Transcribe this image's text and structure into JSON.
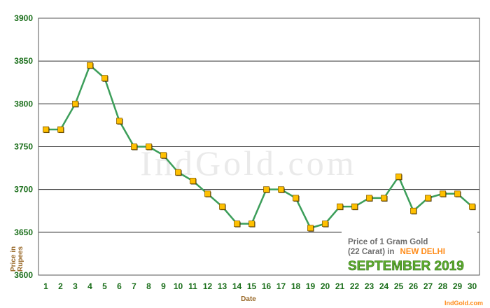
{
  "chart_data": {
    "type": "line",
    "watermark": "IndGold.com",
    "xlabel": "Date",
    "ylabel": "Price in Rupees",
    "ylim": [
      3600,
      3900
    ],
    "yticks": [
      3600,
      3650,
      3700,
      3750,
      3800,
      3850,
      3900
    ],
    "grid": true,
    "x": [
      1,
      2,
      3,
      4,
      5,
      6,
      7,
      8,
      9,
      10,
      11,
      12,
      13,
      14,
      15,
      16,
      17,
      18,
      19,
      20,
      21,
      22,
      23,
      24,
      25,
      26,
      27,
      28,
      29,
      30
    ],
    "series": [
      {
        "values": [
          3770,
          3770,
          3800,
          3845,
          3830,
          3780,
          3750,
          3750,
          3740,
          3720,
          3710,
          3695,
          3680,
          3660,
          3660,
          3700,
          3700,
          3690,
          3655,
          3660,
          3680,
          3680,
          3690,
          3690,
          3715,
          3675,
          3690,
          3695,
          3695,
          3680
        ]
      }
    ],
    "legend": {
      "line1": "Price of 1 Gram Gold",
      "line2_prefix": "(22 Carat) in",
      "city": "NEW DELHI",
      "month": "SEPTEMBER 2019",
      "credit": "IndGold.com"
    },
    "colors": {
      "line": "#3c9e5a",
      "marker_fill": "#ffc000",
      "marker_border": "#000000",
      "tick_text": "#1a6e1a",
      "grid": "#000000"
    }
  }
}
